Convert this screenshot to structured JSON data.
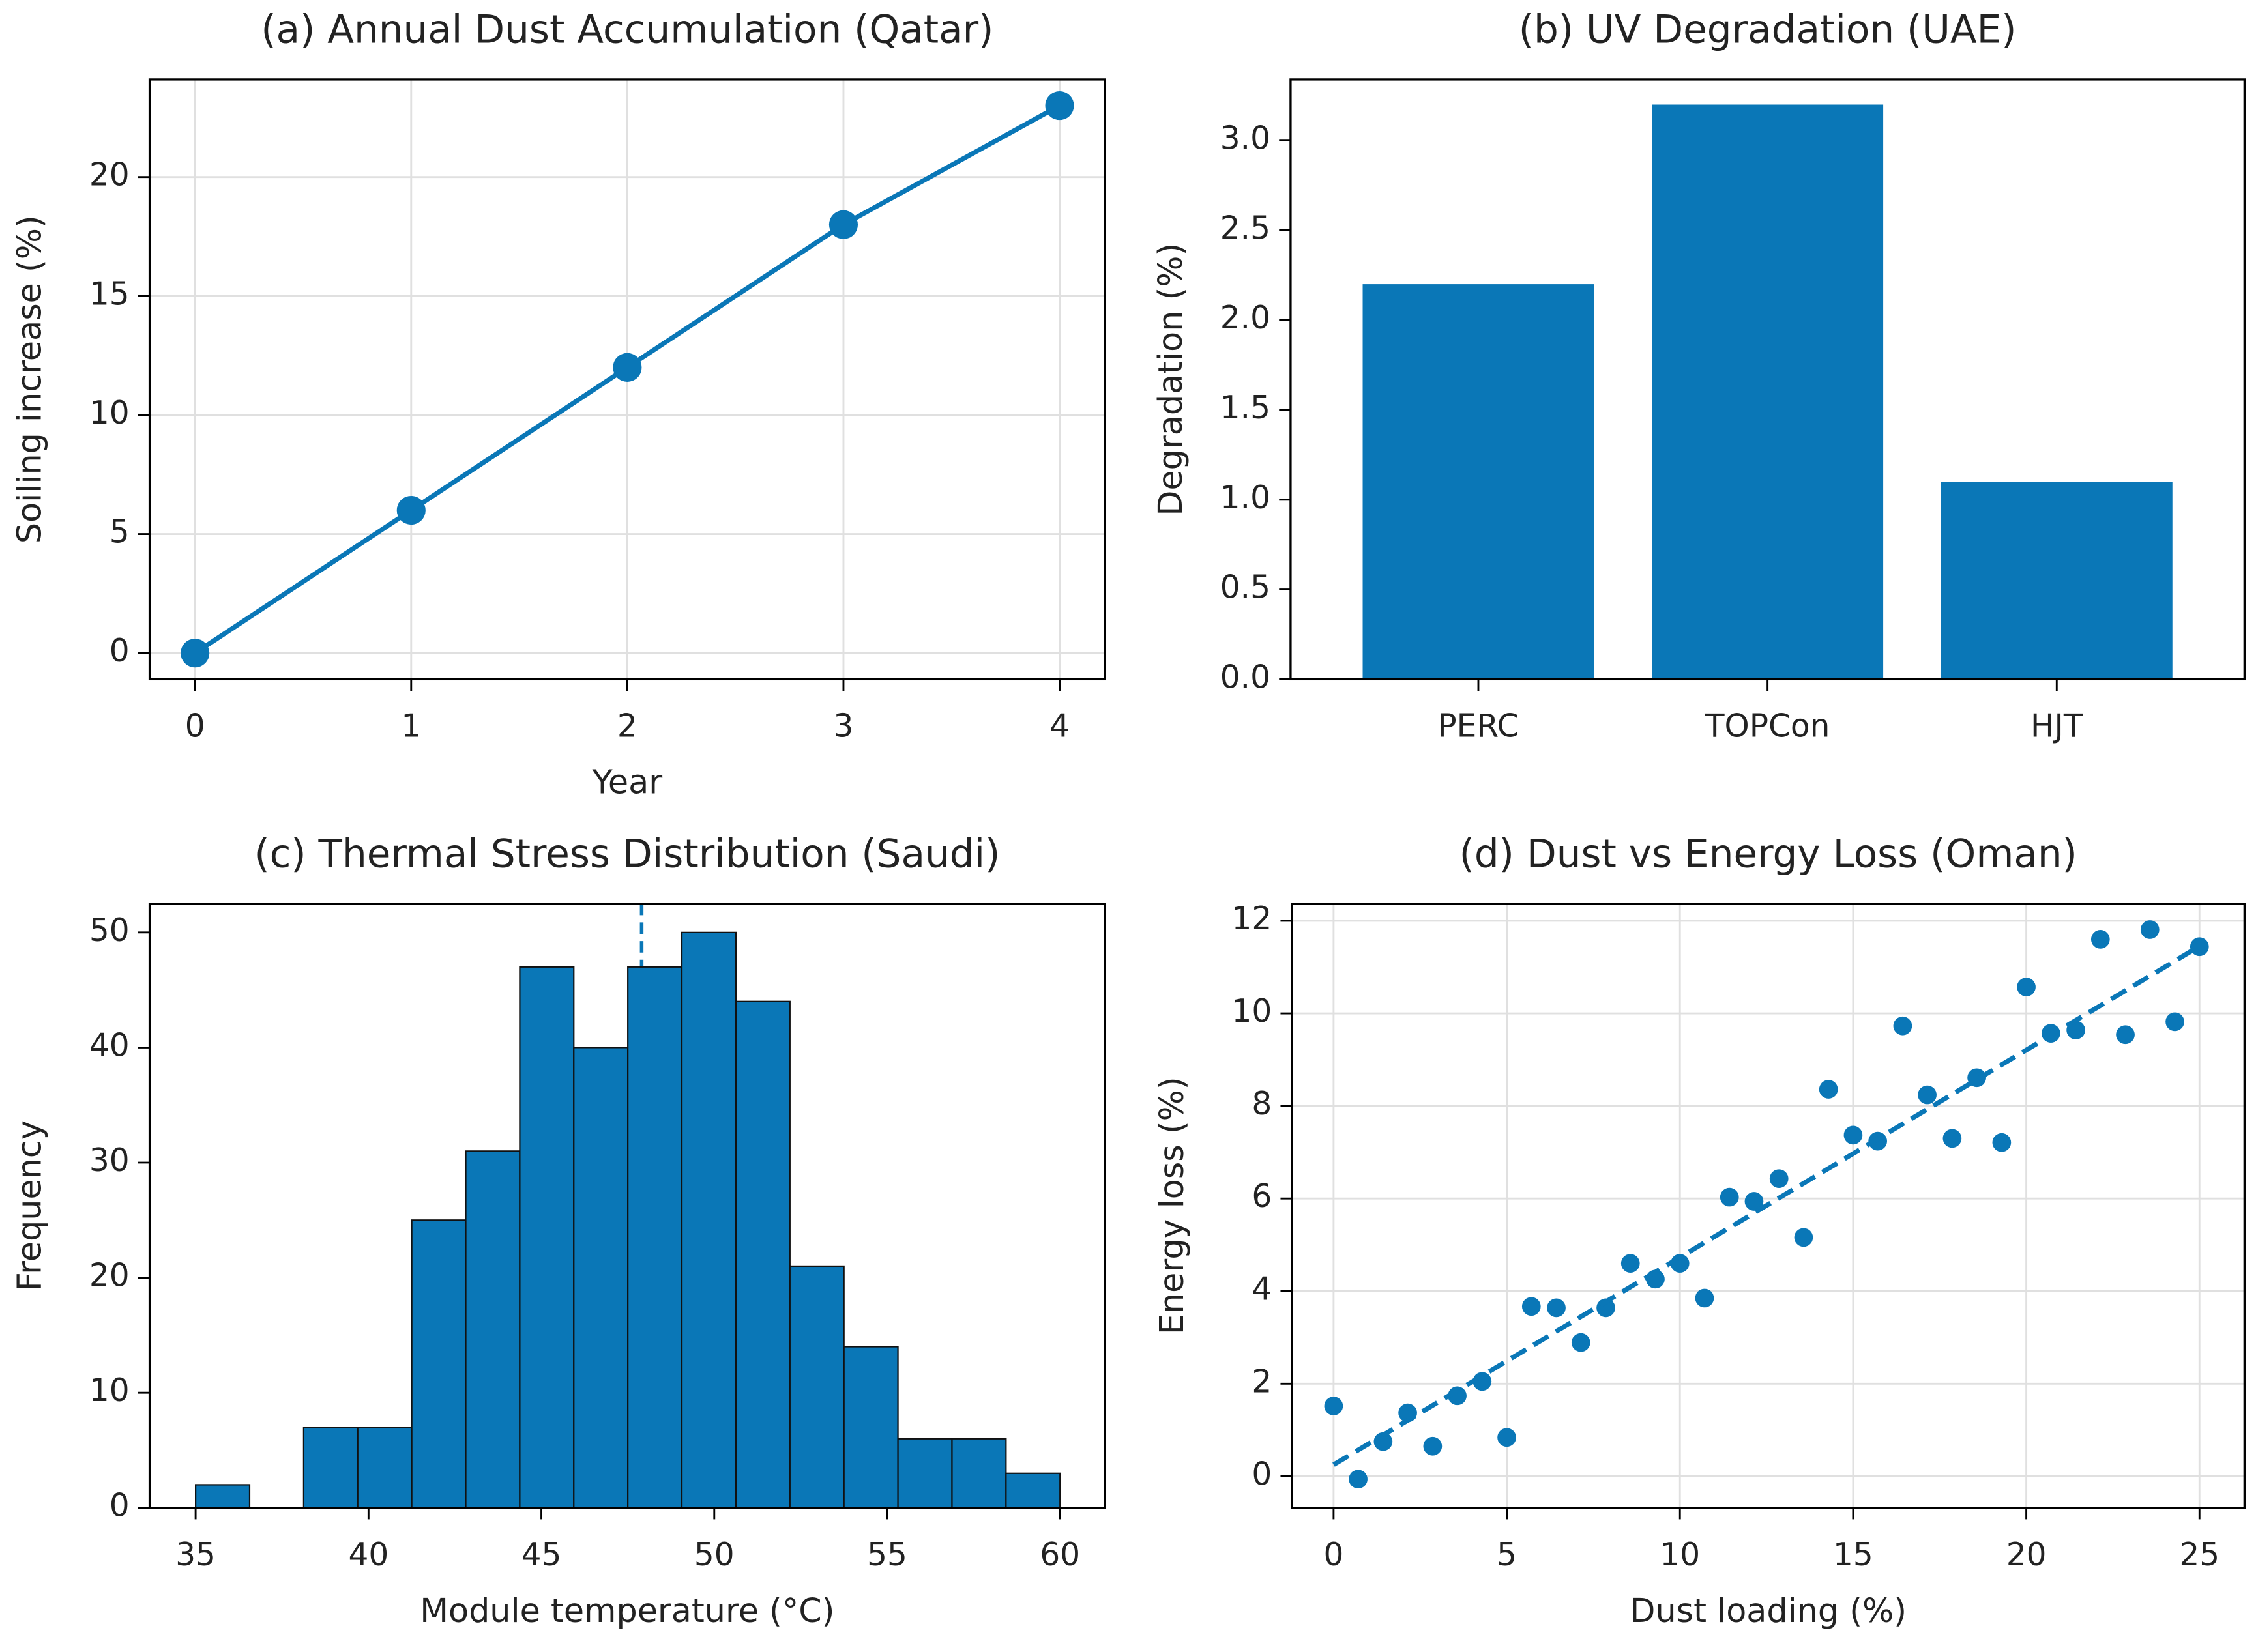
{
  "chart_data": [
    {
      "type": "line",
      "title": "(a) Annual Dust Accumulation (Qatar)",
      "xlabel": "Year",
      "ylabel": "Soiling increase (%)",
      "x": [
        0,
        1,
        2,
        3,
        4
      ],
      "values": [
        0,
        6,
        12,
        18,
        23
      ],
      "color": "#0a77b7",
      "xlim": [
        -0.21,
        4.21
      ],
      "ylim": [
        -1.1,
        24.1
      ],
      "xticks": [
        0,
        1,
        2,
        3,
        4
      ],
      "yticks": [
        0,
        5,
        10,
        15,
        20
      ],
      "grid": true
    },
    {
      "type": "bar",
      "title": "(b) UV Degradation (UAE)",
      "ylabel": "Degradation (%)",
      "categories": [
        "PERC",
        "TOPCon",
        "HJT"
      ],
      "values": [
        2.2,
        3.2,
        1.1
      ],
      "color": "#0a77b7",
      "ylim": [
        0,
        3.34
      ],
      "yticks": [
        {
          "value": 0,
          "label": "0.0"
        },
        {
          "value": 0.5,
          "label": "0.5"
        },
        {
          "value": 1,
          "label": "1.0"
        },
        {
          "value": 1.5,
          "label": "1.5"
        },
        {
          "value": 2,
          "label": "2.0"
        },
        {
          "value": 2.5,
          "label": "2.5"
        },
        {
          "value": 3,
          "label": "3.0"
        }
      ],
      "grid": false
    },
    {
      "type": "histogram",
      "title": "(c) Thermal Stress Distribution (Saudi)",
      "xlabel": "Module temperature (°C)",
      "ylabel": "Frequency",
      "bins": [
        35,
        36.5625,
        38.125,
        39.6875,
        41.25,
        42.8125,
        44.375,
        45.9375,
        47.5,
        49.0625,
        50.625,
        52.1875,
        53.75,
        55.3125,
        56.875,
        58.4375,
        60
      ],
      "values": [
        2,
        0,
        7,
        7,
        25,
        31,
        47,
        40,
        47,
        50,
        44,
        21,
        14,
        6,
        6,
        3
      ],
      "color": "#0a77b7",
      "mean_line": 47.9,
      "xlim": [
        33.67,
        61.3
      ],
      "ylim": [
        0,
        52.5
      ],
      "xticks": [
        35,
        40,
        45,
        50,
        55,
        60
      ],
      "yticks": [
        0,
        10,
        20,
        30,
        40,
        50
      ],
      "grid": false
    },
    {
      "type": "scatter",
      "title": "(d) Dust vs Energy Loss (Oman)",
      "xlabel": "Dust loading (%)",
      "ylabel": "Energy loss (%)",
      "x": [
        0,
        0.71,
        1.43,
        2.14,
        2.86,
        3.57,
        4.29,
        5.0,
        5.71,
        6.43,
        7.14,
        7.86,
        8.57,
        9.29,
        10,
        10.71,
        11.43,
        12.14,
        12.86,
        13.57,
        14.29,
        15,
        15.71,
        16.43,
        17.14,
        17.86,
        18.57,
        19.29,
        20,
        20.71,
        21.43,
        22.14,
        22.86,
        23.57,
        24.29,
        25
      ],
      "values": [
        1.52,
        -0.06,
        0.75,
        1.37,
        0.65,
        1.74,
        2.05,
        0.84,
        3.67,
        3.64,
        2.89,
        3.64,
        4.6,
        4.26,
        4.6,
        3.85,
        6.03,
        5.94,
        6.43,
        5.16,
        8.36,
        7.37,
        7.24,
        9.73,
        8.24,
        7.3,
        8.61,
        7.21,
        10.57,
        9.57,
        9.64,
        11.6,
        9.54,
        11.81,
        9.82,
        11.44
      ],
      "fit": {
        "x": [
          0,
          25
        ],
        "values": [
          0.25,
          11.45
        ]
      },
      "color": "#0a77b7",
      "xlim": [
        -1.2,
        26.3
      ],
      "ylim": [
        -0.68,
        12.37
      ],
      "xticks": [
        0,
        5,
        10,
        15,
        20,
        25
      ],
      "yticks": [
        0,
        2,
        4,
        6,
        8,
        10,
        12
      ],
      "grid": true
    }
  ]
}
